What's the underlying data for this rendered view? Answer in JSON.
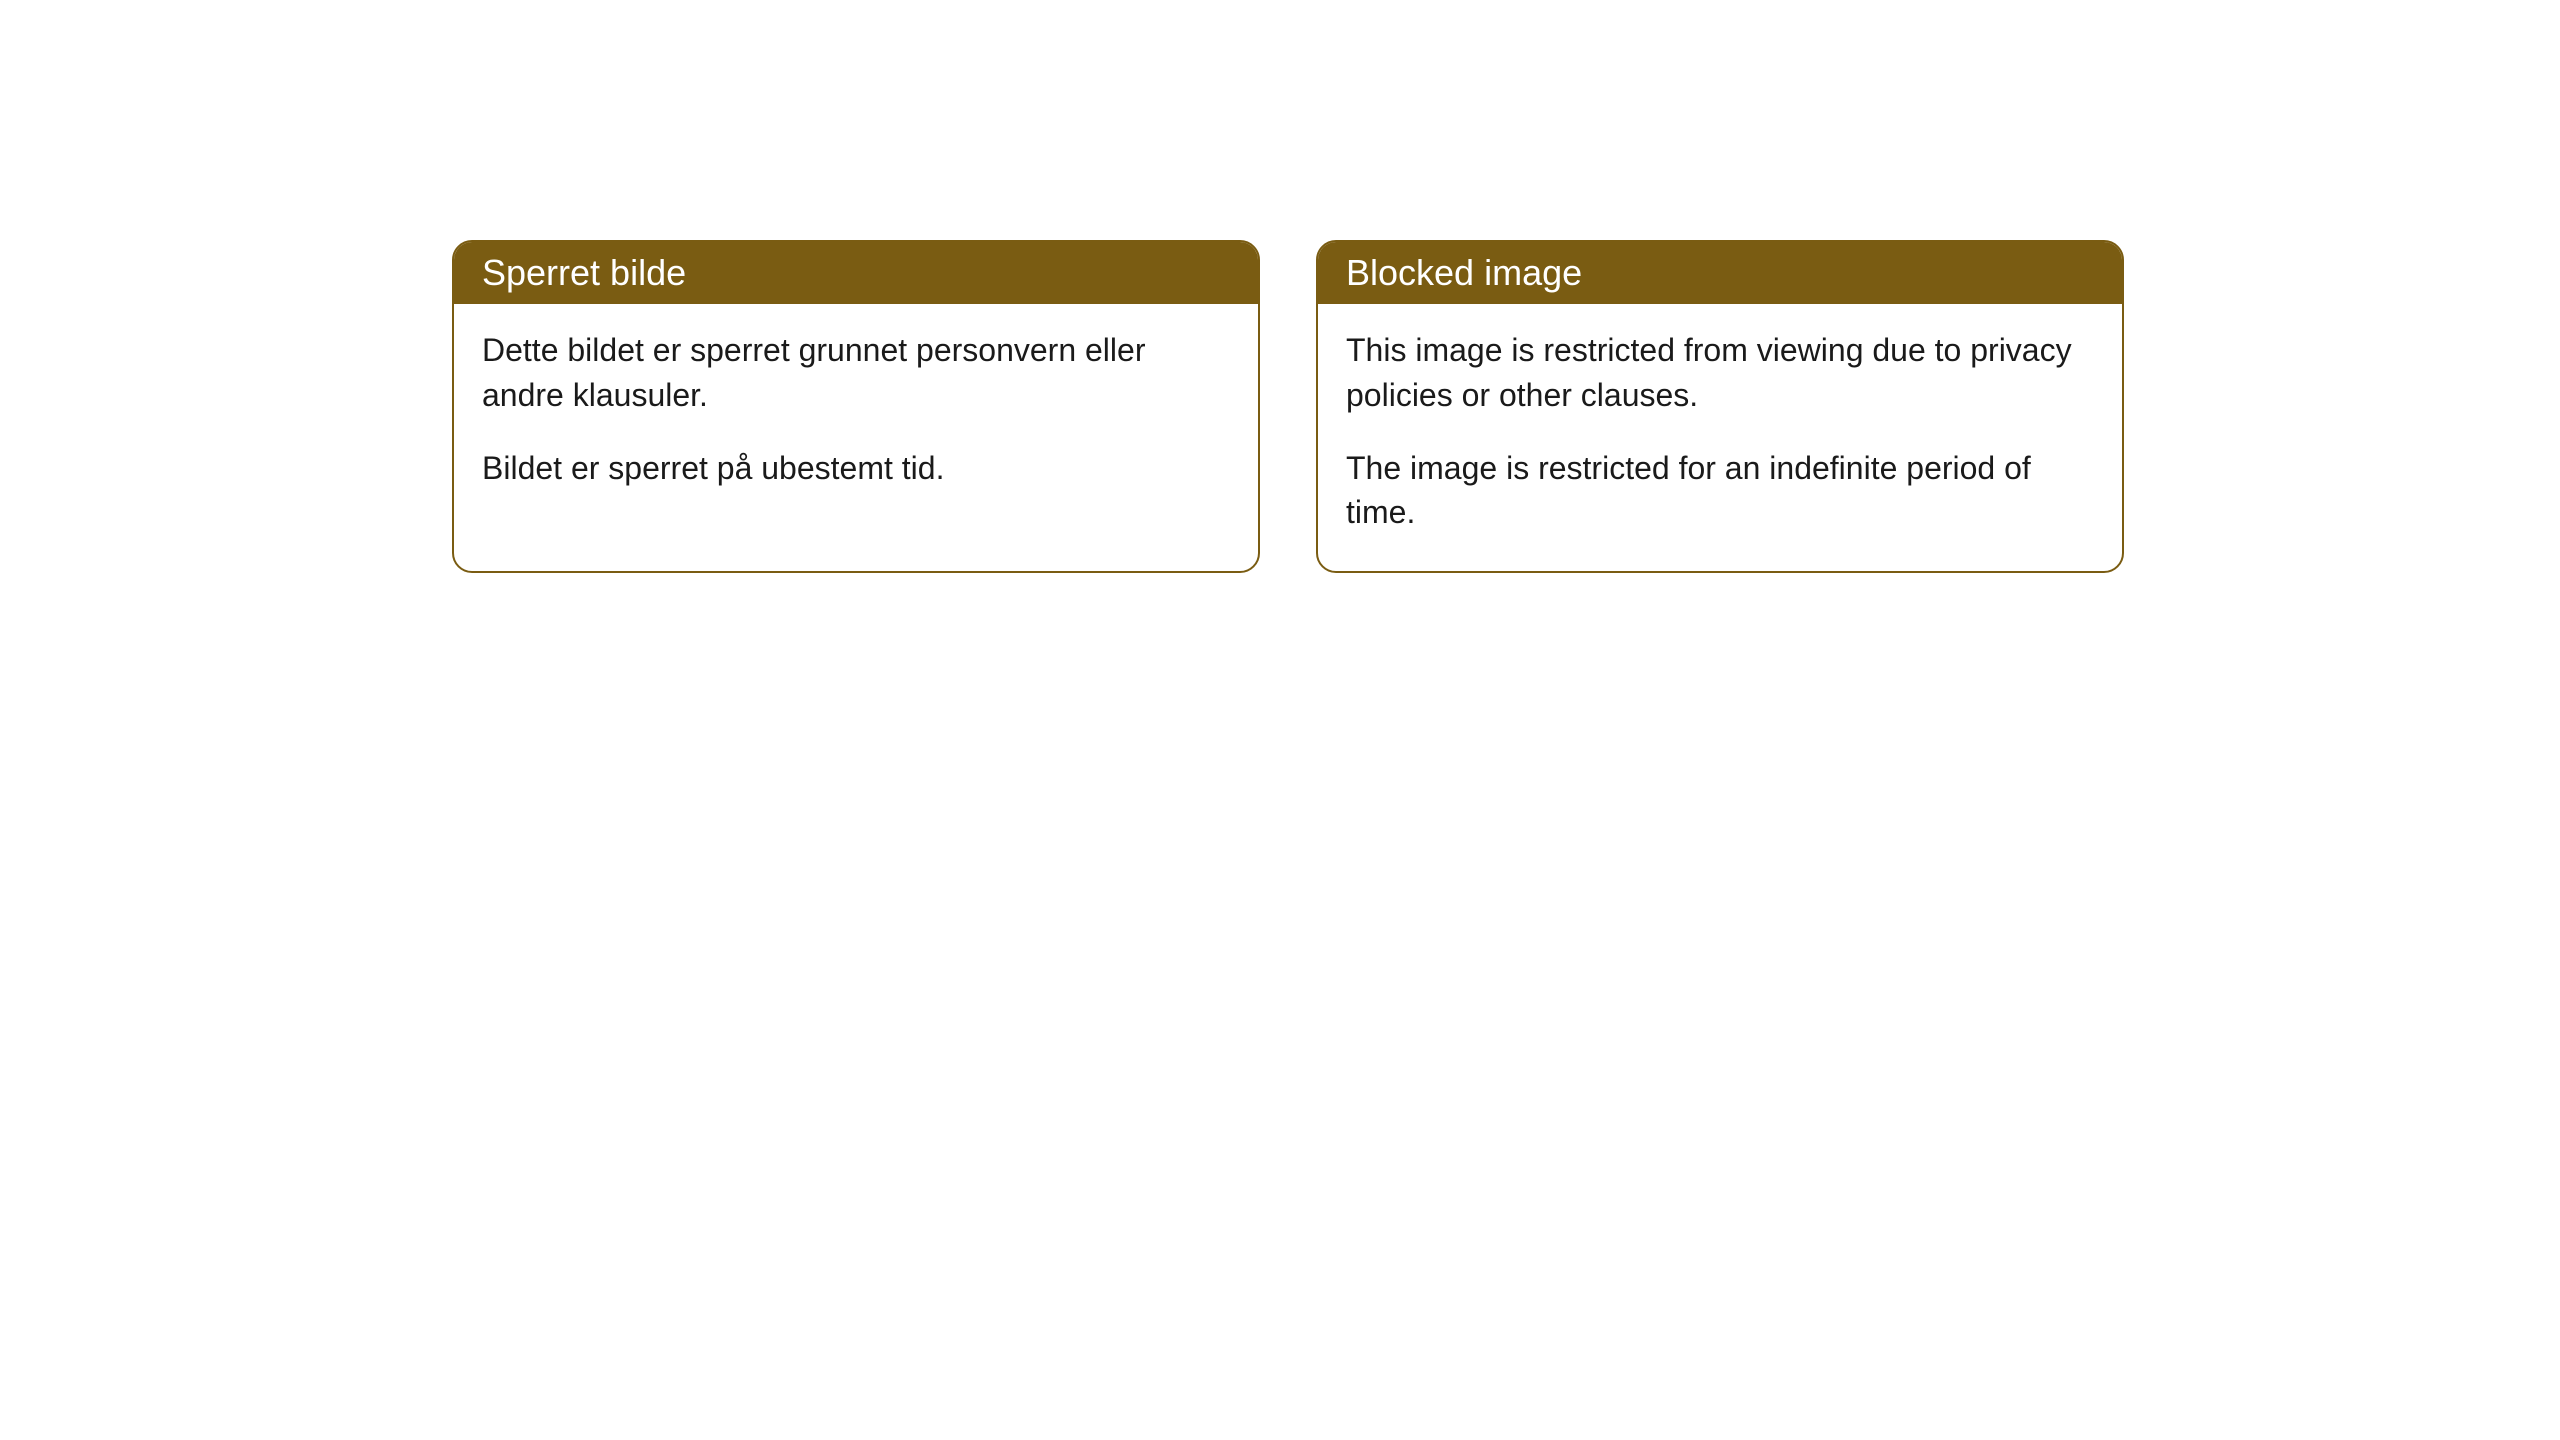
{
  "cards": [
    {
      "title": "Sperret bilde",
      "paragraph1": "Dette bildet er sperret grunnet personvern eller andre klausuler.",
      "paragraph2": "Bildet er sperret på ubestemt tid."
    },
    {
      "title": "Blocked image",
      "paragraph1": "This image is restricted from viewing due to privacy policies or other clauses.",
      "paragraph2": "The image is restricted for an indefinite period of time."
    }
  ],
  "styling": {
    "header_background": "#7a5c12",
    "header_text_color": "#ffffff",
    "border_color": "#7a5c12",
    "body_background": "#ffffff",
    "body_text_color": "#1a1a1a",
    "border_radius": 20,
    "title_fontsize": 36,
    "body_fontsize": 32
  }
}
